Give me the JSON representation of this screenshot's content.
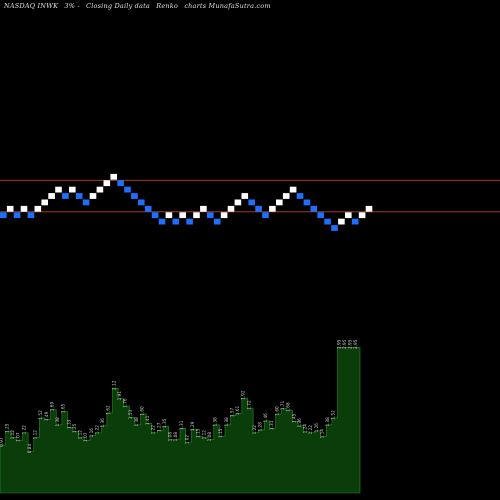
{
  "header": {
    "ticker": "NASDAQ INWK",
    "flags": "3% -",
    "chart_type": "Closing Daily data",
    "renko": "Renko",
    "site": "charts MunafaSutra.com"
  },
  "colors": {
    "background": "#000000",
    "up_brick": "#ffffff",
    "down_brick": "#1f6fff",
    "reference_line": "#b5452a",
    "volume_fill": "#0b3d0b",
    "volume_stroke": "#1f8f1f",
    "label_text": "#d0d0d0"
  },
  "chart_data": {
    "type": "renko",
    "renko_bricks": [
      {
        "dir": "down",
        "level": 0
      },
      {
        "dir": "up",
        "level": 1
      },
      {
        "dir": "down",
        "level": 0
      },
      {
        "dir": "up",
        "level": 1
      },
      {
        "dir": "down",
        "level": 0
      },
      {
        "dir": "up",
        "level": 1
      },
      {
        "dir": "up",
        "level": 2
      },
      {
        "dir": "up",
        "level": 3
      },
      {
        "dir": "up",
        "level": 4
      },
      {
        "dir": "down",
        "level": 3
      },
      {
        "dir": "up",
        "level": 4
      },
      {
        "dir": "down",
        "level": 3
      },
      {
        "dir": "down",
        "level": 2
      },
      {
        "dir": "up",
        "level": 3
      },
      {
        "dir": "up",
        "level": 4
      },
      {
        "dir": "up",
        "level": 5
      },
      {
        "dir": "up",
        "level": 6
      },
      {
        "dir": "down",
        "level": 5
      },
      {
        "dir": "down",
        "level": 4
      },
      {
        "dir": "down",
        "level": 3
      },
      {
        "dir": "down",
        "level": 2
      },
      {
        "dir": "down",
        "level": 1
      },
      {
        "dir": "down",
        "level": 0
      },
      {
        "dir": "down",
        "level": -1
      },
      {
        "dir": "up",
        "level": 0
      },
      {
        "dir": "down",
        "level": -1
      },
      {
        "dir": "up",
        "level": 0
      },
      {
        "dir": "down",
        "level": -1
      },
      {
        "dir": "up",
        "level": 0
      },
      {
        "dir": "up",
        "level": 1
      },
      {
        "dir": "down",
        "level": 0
      },
      {
        "dir": "down",
        "level": -1
      },
      {
        "dir": "up",
        "level": 0
      },
      {
        "dir": "up",
        "level": 1
      },
      {
        "dir": "up",
        "level": 2
      },
      {
        "dir": "up",
        "level": 3
      },
      {
        "dir": "down",
        "level": 2
      },
      {
        "dir": "down",
        "level": 1
      },
      {
        "dir": "down",
        "level": 0
      },
      {
        "dir": "up",
        "level": 1
      },
      {
        "dir": "up",
        "level": 2
      },
      {
        "dir": "up",
        "level": 3
      },
      {
        "dir": "up",
        "level": 4
      },
      {
        "dir": "down",
        "level": 3
      },
      {
        "dir": "down",
        "level": 2
      },
      {
        "dir": "down",
        "level": 1
      },
      {
        "dir": "down",
        "level": 0
      },
      {
        "dir": "down",
        "level": -1
      },
      {
        "dir": "down",
        "level": -2
      },
      {
        "dir": "up",
        "level": -1
      },
      {
        "dir": "up",
        "level": 0
      },
      {
        "dir": "down",
        "level": -1
      },
      {
        "dir": "up",
        "level": 0
      },
      {
        "dir": "up",
        "level": 1
      }
    ],
    "reference_levels": [
      6,
      1
    ],
    "volume": [
      {
        "label": "0.97",
        "value": 0.97
      },
      {
        "label": "1.25",
        "value": 1.25
      },
      {
        "label": "1.12",
        "value": 1.12
      },
      {
        "label": "1.07",
        "value": 1.07
      },
      {
        "label": "1.22",
        "value": 1.22
      },
      {
        "label": "0.84",
        "value": 0.84
      },
      {
        "label": "1.12",
        "value": 1.12
      },
      {
        "label": "1.52",
        "value": 1.52
      },
      {
        "label": "1.49",
        "value": 1.49
      },
      {
        "label": "1.69",
        "value": 1.69
      },
      {
        "label": "1.38",
        "value": 1.38
      },
      {
        "label": "1.65",
        "value": 1.65
      },
      {
        "label": "1.33",
        "value": 1.33
      },
      {
        "label": "1.25",
        "value": 1.25
      },
      {
        "label": "1.12",
        "value": 1.12
      },
      {
        "label": "1.07",
        "value": 1.07
      },
      {
        "label": "1.16",
        "value": 1.16
      },
      {
        "label": "1.22",
        "value": 1.22
      },
      {
        "label": "1.36",
        "value": 1.36
      },
      {
        "label": "1.62",
        "value": 1.62
      },
      {
        "label": "2.12",
        "value": 2.12
      },
      {
        "label": "1.91",
        "value": 1.91
      },
      {
        "label": "1.76",
        "value": 1.76
      },
      {
        "label": "1.53",
        "value": 1.53
      },
      {
        "label": "1.38",
        "value": 1.38
      },
      {
        "label": "1.60",
        "value": 1.6
      },
      {
        "label": "1.41",
        "value": 1.41
      },
      {
        "label": "1.22",
        "value": 1.22
      },
      {
        "label": "1.27",
        "value": 1.27
      },
      {
        "label": "1.35",
        "value": 1.35
      },
      {
        "label": "1.08",
        "value": 1.08
      },
      {
        "label": "1.08",
        "value": 1.08
      },
      {
        "label": "1.31",
        "value": 1.31
      },
      {
        "label": "1.02",
        "value": 1.02
      },
      {
        "label": "1.29",
        "value": 1.29
      },
      {
        "label": "1.15",
        "value": 1.15
      },
      {
        "label": "1.12",
        "value": 1.12
      },
      {
        "label": "1.08",
        "value": 1.08
      },
      {
        "label": "1.38",
        "value": 1.38
      },
      {
        "label": "1.15",
        "value": 1.15
      },
      {
        "label": "1.38",
        "value": 1.38
      },
      {
        "label": "1.57",
        "value": 1.57
      },
      {
        "label": "1.61",
        "value": 1.61
      },
      {
        "label": "1.92",
        "value": 1.92
      },
      {
        "label": "1.72",
        "value": 1.72
      },
      {
        "label": "1.22",
        "value": 1.22
      },
      {
        "label": "1.28",
        "value": 1.28
      },
      {
        "label": "1.46",
        "value": 1.46
      },
      {
        "label": "1.31",
        "value": 1.31
      },
      {
        "label": "1.60",
        "value": 1.6
      },
      {
        "label": "1.71",
        "value": 1.71
      },
      {
        "label": "1.68",
        "value": 1.68
      },
      {
        "label": "1.45",
        "value": 1.45
      },
      {
        "label": "1.36",
        "value": 1.36
      },
      {
        "label": "1.24",
        "value": 1.24
      },
      {
        "label": "1.22",
        "value": 1.22
      },
      {
        "label": "1.26",
        "value": 1.26
      },
      {
        "label": "1.14",
        "value": 1.14
      },
      {
        "label": "1.38",
        "value": 1.38
      },
      {
        "label": "1.52",
        "value": 1.52
      },
      {
        "label": "2.95",
        "value": 2.95
      },
      {
        "label": "2.95",
        "value": 2.95
      },
      {
        "label": "2.95",
        "value": 2.95
      },
      {
        "label": "2.95",
        "value": 2.95
      }
    ],
    "volume_ylim": [
      0,
      3.3
    ]
  }
}
